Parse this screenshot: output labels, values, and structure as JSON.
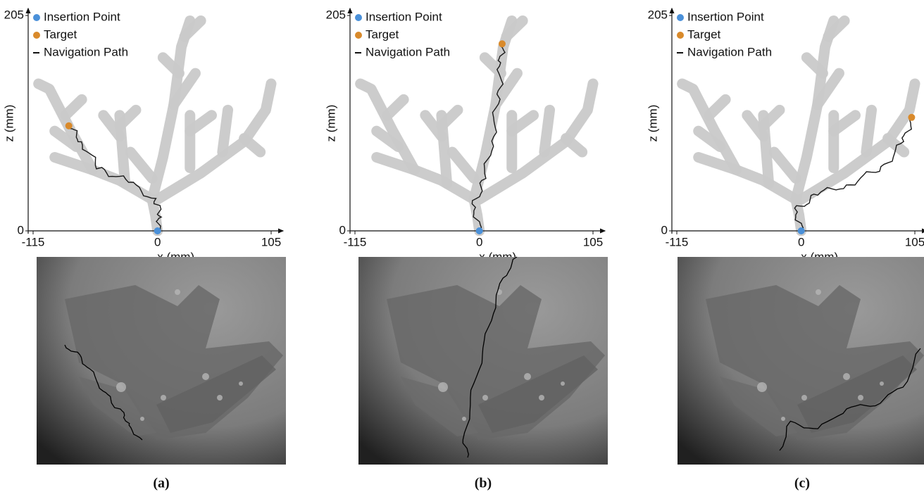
{
  "panels": [
    {
      "caption": "(a)",
      "legend": [
        "Insertion Point",
        "Target",
        "Navigation Path"
      ],
      "xlabel": "x (mm)",
      "ylabel": "z (mm)",
      "xlim": [
        -115,
        105
      ],
      "xticks": [
        -115,
        0,
        105
      ],
      "zlim": [
        0,
        205
      ],
      "zticks": [
        0,
        205
      ],
      "insertion": [
        0,
        0
      ],
      "target": [
        -82,
        100
      ]
    },
    {
      "caption": "(b)",
      "legend": [
        "Insertion Point",
        "Target",
        "Navigation Path"
      ],
      "xlabel": "x (mm)",
      "ylabel": "z (mm)",
      "xlim": [
        -115,
        105
      ],
      "xticks": [
        -115,
        0,
        105
      ],
      "zlim": [
        0,
        205
      ],
      "zticks": [
        0,
        205
      ],
      "insertion": [
        0,
        0
      ],
      "target": [
        21,
        178
      ]
    },
    {
      "caption": "(c)",
      "legend": [
        "Insertion Point",
        "Target",
        "Navigation Path"
      ],
      "xlabel": "x (mm)",
      "ylabel": "z (mm)",
      "xlim": [
        -115,
        105
      ],
      "xticks": [
        -115,
        0,
        105
      ],
      "zlim": [
        0,
        205
      ],
      "zticks": [
        0,
        205
      ],
      "insertion": [
        0,
        0
      ],
      "target": [
        102,
        108
      ]
    }
  ]
}
